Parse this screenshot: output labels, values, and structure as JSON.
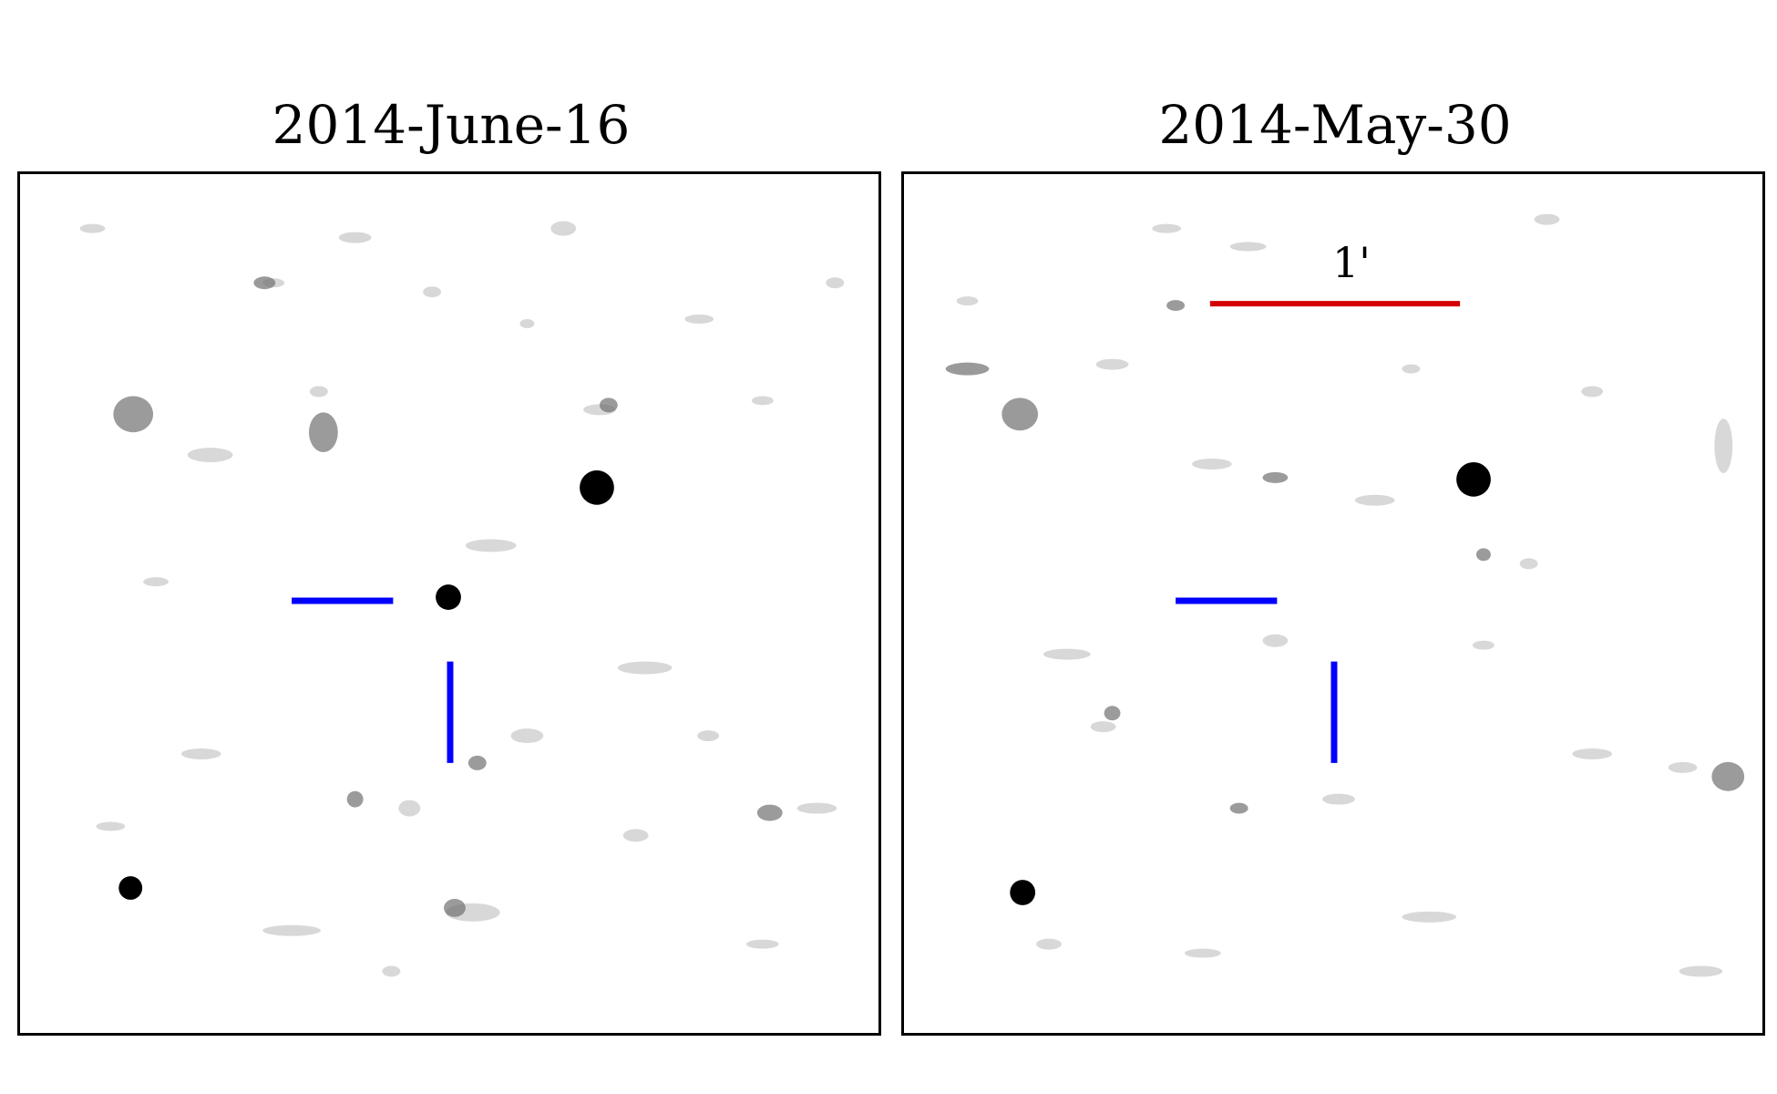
{
  "panels": [
    {
      "title": "2014-June-16"
    },
    {
      "title": "2014-May-30"
    }
  ],
  "scale_bar": {
    "label": "1'",
    "color": "#d40000"
  },
  "marker_color": "#0000ff",
  "star_color": "#000000"
}
